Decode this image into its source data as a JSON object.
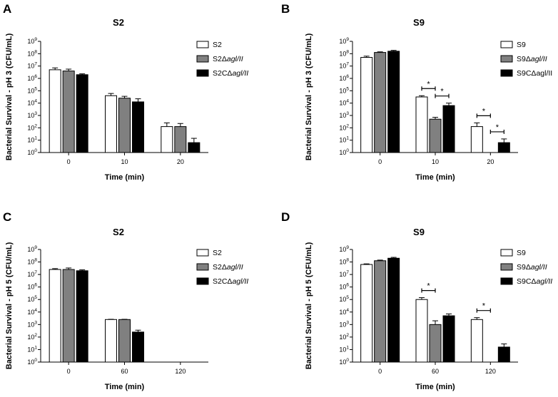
{
  "chart_data": [
    {
      "panel": "A",
      "type": "bar",
      "title": "S2",
      "xlabel": "Time (min)",
      "ylabel": "Bacterial Survival - pH 3 (CFU/mL)",
      "categories": [
        "0",
        "10",
        "20"
      ],
      "scale": "log10",
      "ylim_exp": [
        0,
        9
      ],
      "series": [
        {
          "name": "S2",
          "fill": "#ffffff",
          "values": [
            6.7,
            4.6,
            2.1
          ],
          "err": [
            0.15,
            0.18,
            0.3
          ]
        },
        {
          "name": "S2Δ",
          "name_italic": "agl/II",
          "fill": "#808080",
          "values": [
            6.6,
            4.4,
            2.1
          ],
          "err": [
            0.15,
            0.15,
            0.25
          ]
        },
        {
          "name": "S2CΔ",
          "name_italic": "agl/II",
          "fill": "#000000",
          "values": [
            6.3,
            4.1,
            0.8
          ],
          "err": [
            0.07,
            0.25,
            0.35
          ]
        }
      ],
      "significance": []
    },
    {
      "panel": "B",
      "type": "bar",
      "title": "S9",
      "xlabel": "Time (min)",
      "ylabel": "Bacterial Survival - pH 3 (CFU/mL)",
      "categories": [
        "0",
        "10",
        "20"
      ],
      "scale": "log10",
      "ylim_exp": [
        0,
        9
      ],
      "series": [
        {
          "name": "S9",
          "fill": "#ffffff",
          "values": [
            7.7,
            4.5,
            2.1
          ],
          "err": [
            0.1,
            0.1,
            0.3
          ]
        },
        {
          "name": "S9Δ",
          "name_italic": "agl/II",
          "fill": "#808080",
          "values": [
            8.1,
            2.7,
            null
          ],
          "err": [
            0.05,
            0.15,
            0
          ]
        },
        {
          "name": "S9CΔagl/II",
          "name_italic": "",
          "fill": "#000000",
          "values": [
            8.2,
            3.8,
            0.8
          ],
          "err": [
            0.07,
            0.2,
            0.3
          ]
        }
      ],
      "significance": [
        {
          "cat": 1,
          "from": 0,
          "to": 1,
          "label": "*"
        },
        {
          "cat": 1,
          "from": 1,
          "to": 2,
          "label": "*"
        },
        {
          "cat": 2,
          "from": 0,
          "to": 1,
          "label": "*"
        },
        {
          "cat": 2,
          "from": 1,
          "to": 2,
          "label": "*"
        }
      ]
    },
    {
      "panel": "C",
      "type": "bar",
      "title": "S2",
      "xlabel": "Time (min)",
      "ylabel": "Bacterial Survival - pH 5 (CFU/mL)",
      "categories": [
        "0",
        "60",
        "120"
      ],
      "scale": "log10",
      "ylim_exp": [
        0,
        9
      ],
      "series": [
        {
          "name": "S2",
          "fill": "#ffffff",
          "values": [
            7.4,
            3.4,
            null
          ],
          "err": [
            0.07,
            0.02,
            0
          ]
        },
        {
          "name": "S2Δ",
          "name_italic": "agl/II",
          "fill": "#808080",
          "values": [
            7.4,
            3.4,
            null
          ],
          "err": [
            0.12,
            0.02,
            0
          ]
        },
        {
          "name": "S2CΔ",
          "name_italic": "agl/II",
          "fill": "#000000",
          "values": [
            7.3,
            2.4,
            null
          ],
          "err": [
            0.07,
            0.15,
            0
          ]
        }
      ],
      "significance": []
    },
    {
      "panel": "D",
      "type": "bar",
      "title": "S9",
      "xlabel": "Time (min)",
      "ylabel": "Bacterial Survival - pH 5 (CFU/mL)",
      "categories": [
        "0",
        "60",
        "120"
      ],
      "scale": "log10",
      "ylim_exp": [
        0,
        9
      ],
      "series": [
        {
          "name": "S9",
          "fill": "#ffffff",
          "values": [
            7.8,
            5.0,
            3.4
          ],
          "err": [
            0.05,
            0.15,
            0.15
          ]
        },
        {
          "name": "S9Δ",
          "name_italic": "agl/II",
          "fill": "#808080",
          "values": [
            8.1,
            3.0,
            null
          ],
          "err": [
            0.05,
            0.3,
            0
          ]
        },
        {
          "name": "S9CΔ",
          "name_italic": "agl/II",
          "fill": "#000000",
          "values": [
            8.3,
            3.7,
            1.2
          ],
          "err": [
            0.07,
            0.15,
            0.25
          ]
        }
      ],
      "significance": [
        {
          "cat": 1,
          "from": 0,
          "to": 1,
          "label": "*"
        },
        {
          "cat": 2,
          "from": 0,
          "to": 1,
          "label": "*"
        }
      ]
    }
  ]
}
